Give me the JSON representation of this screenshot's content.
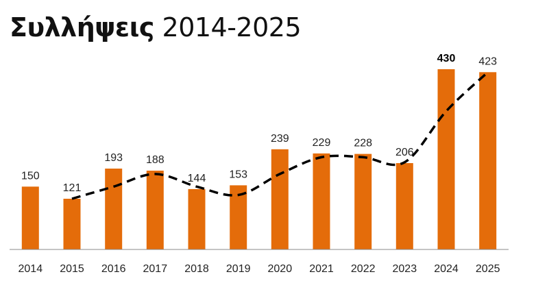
{
  "header": {
    "title_bold": "Συλλήψεις",
    "title_light": "2014-2025"
  },
  "chart_data": {
    "type": "bar",
    "categories": [
      "2014",
      "2015",
      "2016",
      "2017",
      "2018",
      "2019",
      "2020",
      "2021",
      "2022",
      "2023",
      "2024",
      "2025"
    ],
    "values": [
      150,
      121,
      193,
      188,
      144,
      153,
      239,
      229,
      228,
      206,
      430,
      423
    ],
    "emphasized_label_index": 10,
    "trendline": {
      "style": "dashed",
      "color": "#000000",
      "from_category": "2015",
      "to_category": "2025",
      "values": [
        121,
        150,
        180,
        150,
        130,
        180,
        220,
        220,
        208,
        330,
        423
      ]
    },
    "ylim": [
      0,
      450
    ],
    "grid": false,
    "legend": "none",
    "colors": {
      "bar": "#E46C0A",
      "axis": "#888888"
    }
  }
}
